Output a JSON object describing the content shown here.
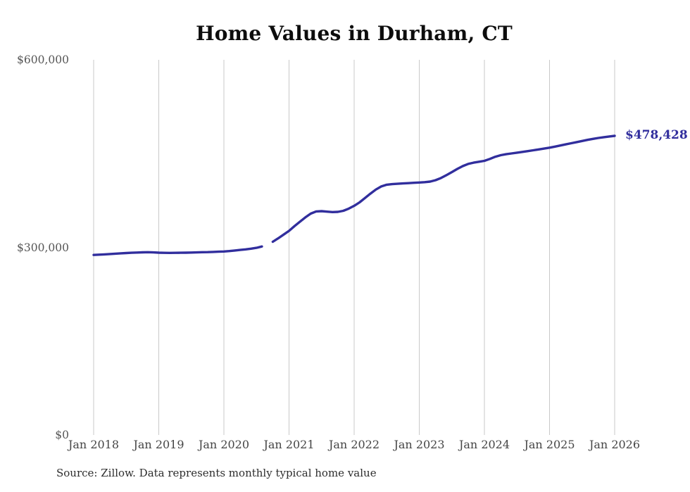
{
  "title": "Home Values in Durham, CT",
  "source_note": "Source: Zillow. Data represents monthly typical home value",
  "latest_value_label": "$478,428",
  "colors": {
    "background": "#ffffff",
    "line": "#312e9d",
    "value_label": "#312e9d",
    "gridline": "#c9c9c9",
    "title_text": "#0d0d0d",
    "y_label_text": "#565656",
    "x_label_text": "#454545",
    "source_text": "#2d2d2d"
  },
  "y_axis": {
    "ticks": [
      {
        "label": "$600,000",
        "value": 600000
      },
      {
        "label": "$300,000",
        "value": 300000
      },
      {
        "label": "$0",
        "value": 0
      }
    ]
  },
  "x_axis": {
    "tick_labels": [
      "Jan 2018",
      "Jan 2019",
      "Jan 2020",
      "Jan 2021",
      "Jan 2022",
      "Jan 2023",
      "Jan 2024",
      "Jan 2025",
      "Jan 2026"
    ]
  },
  "chart_data": {
    "type": "line",
    "title": "Home Values in Durham, CT",
    "xlabel": "",
    "ylabel": "",
    "ylim": [
      0,
      600000
    ],
    "grid": "vertical-only",
    "legend": "none",
    "x_start": "2018-01",
    "x_interval": "month",
    "x_tick_labels": [
      "Jan 2018",
      "Jan 2019",
      "Jan 2020",
      "Jan 2021",
      "Jan 2022",
      "Jan 2023",
      "Jan 2024",
      "Jan 2025",
      "Jan 2026"
    ],
    "gap_note": "value missing for 2020-09 (visible break in line)",
    "end_annotation": "$478,428",
    "series": [
      {
        "name": "Typical home value",
        "values": [
          288000,
          288400,
          288900,
          289400,
          290000,
          290500,
          291000,
          291400,
          291800,
          292100,
          292300,
          292000,
          291600,
          291300,
          291200,
          291300,
          291400,
          291600,
          291800,
          292000,
          292300,
          292500,
          292800,
          293100,
          293500,
          294200,
          295000,
          295900,
          296800,
          298000,
          299300,
          301500,
          null,
          309000,
          314500,
          320500,
          326500,
          334000,
          341000,
          348000,
          354000,
          357500,
          358000,
          357200,
          356500,
          356800,
          358500,
          362000,
          366500,
          372000,
          379000,
          386000,
          392500,
          397500,
          400300,
          401200,
          401800,
          402300,
          402800,
          403300,
          403800,
          404300,
          405200,
          407500,
          411000,
          415500,
          420500,
          425500,
          430000,
          433500,
          435500,
          437000,
          438500,
          441500,
          445000,
          447500,
          449000,
          450300,
          451500,
          452800,
          454000,
          455300,
          456700,
          458100,
          459500,
          461200,
          463000,
          464800,
          466600,
          468400,
          470200,
          472000,
          473600,
          475000,
          476300,
          477400,
          478428
        ]
      }
    ]
  }
}
